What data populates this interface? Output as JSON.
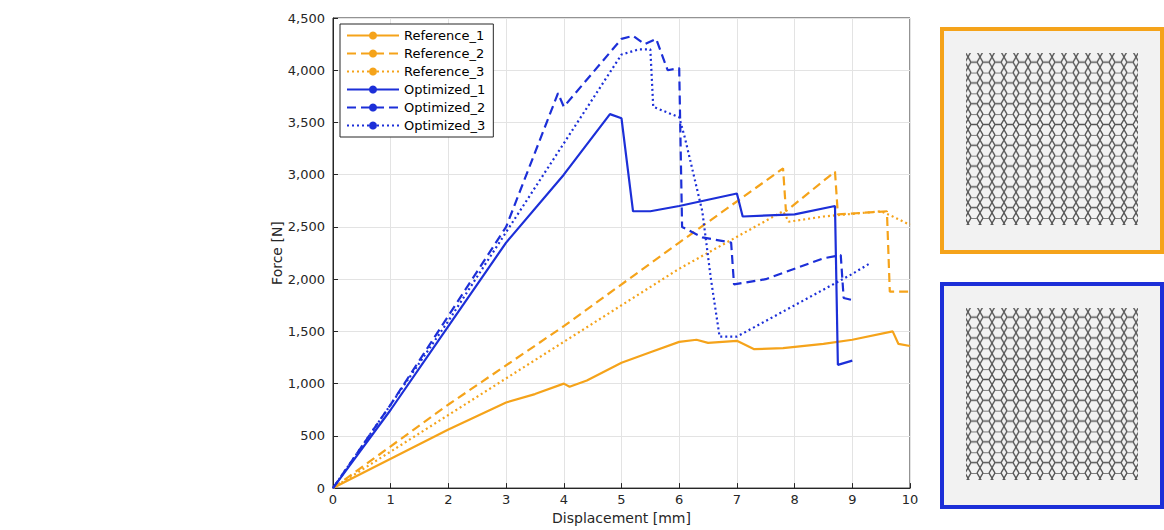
{
  "chart_data": {
    "type": "line",
    "x_label": "Displacement [mm]",
    "y_label": "Force [N]",
    "xlim": [
      0,
      10
    ],
    "xticks": [
      0,
      1,
      2,
      3,
      4,
      5,
      6,
      7,
      8,
      9,
      10
    ],
    "ylim": [
      0,
      4500
    ],
    "yticks": [
      0,
      500,
      1000,
      1500,
      2000,
      2500,
      3000,
      3500,
      4000,
      4500
    ],
    "grid": true,
    "legend": "upper left",
    "series": [
      {
        "name": "Reference_1",
        "color": "#f5a31a",
        "line_style": "solid",
        "x": [
          0,
          1,
          2,
          3,
          3.5,
          4,
          4.1,
          4.4,
          5,
          5.5,
          6,
          6.3,
          6.5,
          7,
          7.3,
          7.8,
          8.5,
          9,
          9.7,
          9.8,
          10
        ],
        "values": [
          0,
          280,
          560,
          820,
          900,
          1000,
          970,
          1030,
          1200,
          1300,
          1400,
          1420,
          1390,
          1410,
          1330,
          1340,
          1380,
          1420,
          1500,
          1380,
          1360
        ]
      },
      {
        "name": "Reference_2",
        "color": "#f5a31a",
        "line_style": "dashed",
        "x": [
          0,
          2,
          4,
          6,
          7.8,
          7.85,
          8.7,
          8.75,
          9.6,
          9.65,
          10
        ],
        "values": [
          0,
          800,
          1550,
          2350,
          3060,
          2650,
          3030,
          2620,
          2650,
          1880,
          1880
        ]
      },
      {
        "name": "Reference_3",
        "color": "#f5a31a",
        "line_style": "dotted",
        "x": [
          0,
          2,
          4,
          6,
          7.8,
          7.9,
          8.5,
          9.5,
          9.7,
          10
        ],
        "values": [
          0,
          700,
          1400,
          2100,
          2650,
          2550,
          2600,
          2650,
          2600,
          2520
        ]
      },
      {
        "name": "Optimized_1",
        "color": "#1c2fd8",
        "line_style": "solid",
        "x": [
          0,
          1,
          2,
          3,
          4,
          4.8,
          5.0,
          5.2,
          5.5,
          6,
          6.5,
          7,
          7.1,
          8,
          8.7,
          8.75,
          9
        ],
        "values": [
          0,
          750,
          1550,
          2350,
          3000,
          3580,
          3540,
          2650,
          2650,
          2700,
          2760,
          2820,
          2600,
          2620,
          2700,
          1180,
          1220
        ]
      },
      {
        "name": "Optimized_2",
        "color": "#1c2fd8",
        "line_style": "dashed",
        "x": [
          0,
          1,
          2,
          3,
          3.9,
          4.0,
          5.0,
          5.2,
          5.4,
          5.6,
          5.8,
          6.0,
          6.05,
          6.4,
          6.9,
          6.95,
          7.5,
          8.5,
          8.8,
          8.85,
          9
        ],
        "values": [
          0,
          800,
          1650,
          2500,
          3780,
          3650,
          4300,
          4330,
          4250,
          4300,
          4000,
          4020,
          2500,
          2400,
          2350,
          1950,
          2000,
          2200,
          2230,
          1820,
          1800
        ]
      },
      {
        "name": "Optimized_3",
        "color": "#1c2fd8",
        "line_style": "dotted",
        "x": [
          0,
          2,
          4,
          5,
          5.3,
          5.5,
          5.55,
          6,
          6.1,
          6.4,
          6.55,
          6.7,
          7,
          8,
          9,
          9.3
        ],
        "values": [
          0,
          1600,
          3300,
          4150,
          4200,
          4200,
          3650,
          3550,
          3350,
          2650,
          2000,
          1450,
          1450,
          1750,
          2050,
          2150
        ]
      }
    ]
  }
}
